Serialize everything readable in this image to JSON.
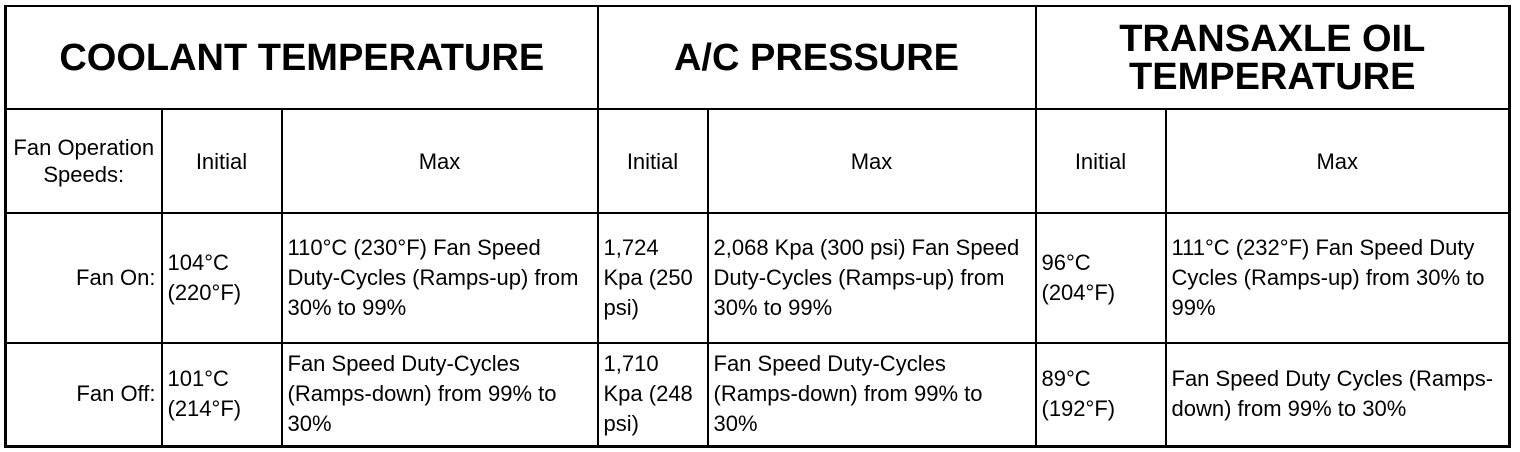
{
  "groups": {
    "coolant": "COOLANT TEMPERATURE",
    "ac": "A/C PRESSURE",
    "transaxle": "TRANSAXLE OIL TEMPERATURE"
  },
  "column_headers": {
    "row_label": "Fan Operation Speeds:",
    "initial": "Initial",
    "max": "Max"
  },
  "rows": [
    {
      "label": "Fan On:",
      "coolant_initial": "104°C (220°F)",
      "coolant_max": "110°C (230°F) Fan Speed Duty-Cycles (Ramps-up) from 30% to 99%",
      "ac_initial": "1,724 Kpa (250 psi)",
      "ac_max": "2,068 Kpa (300 psi) Fan Speed Duty-Cycles (Ramps-up) from 30% to 99%",
      "trans_initial": "96°C (204°F)",
      "trans_max": "111°C (232°F) Fan Speed Duty Cycles (Ramps-up) from 30% to 99%"
    },
    {
      "label": "Fan Off:",
      "coolant_initial": "101°C (214°F)",
      "coolant_max": "Fan Speed Duty-Cycles (Ramps-down) from 99% to 30%",
      "ac_initial": "1,710 Kpa (248 psi)",
      "ac_max": "Fan Speed Duty-Cycles (Ramps-down) from 99% to 30%",
      "trans_initial": "89°C (192°F)",
      "trans_max": "Fan Speed Duty Cycles (Ramps-down) from 99% to 30%"
    }
  ]
}
